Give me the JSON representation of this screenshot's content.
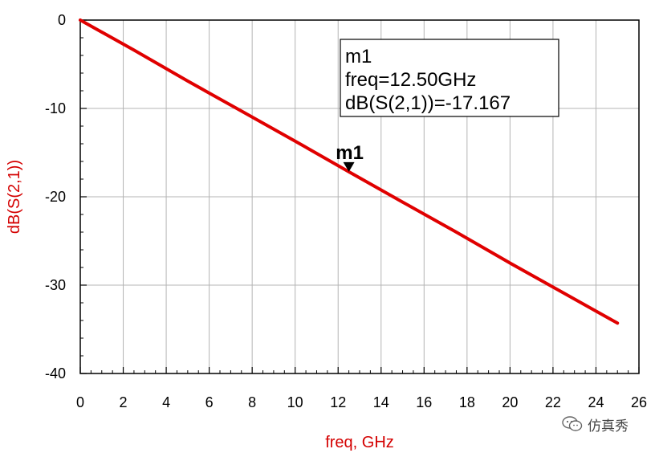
{
  "chart_data": {
    "type": "line",
    "xlabel": "freq, GHz",
    "ylabel": "dB(S(2,1))",
    "xlim": [
      0,
      26
    ],
    "ylim": [
      -40,
      0
    ],
    "x_ticks": [
      0,
      2,
      4,
      6,
      8,
      10,
      12,
      14,
      16,
      18,
      20,
      22,
      24,
      26
    ],
    "y_ticks": [
      0,
      -10,
      -20,
      -30,
      -40
    ],
    "grid": true,
    "series": [
      {
        "color": "#e00000",
        "x": [
          0,
          2.5,
          5,
          7.5,
          10,
          12.5,
          15,
          17.5,
          20,
          22.5,
          25
        ],
        "y": [
          0,
          -3.4,
          -6.9,
          -10.3,
          -13.7,
          -17.167,
          -20.6,
          -24.0,
          -27.5,
          -30.9,
          -34.3
        ]
      }
    ],
    "marker": {
      "name": "m1",
      "x": 12.5,
      "y": -17.167,
      "readout": [
        "m1",
        "freq=12.50GHz",
        "dB(S(2,1))=-17.167"
      ]
    }
  },
  "watermark": {
    "text": "仿真秀",
    "icon": "wechat-icon"
  }
}
